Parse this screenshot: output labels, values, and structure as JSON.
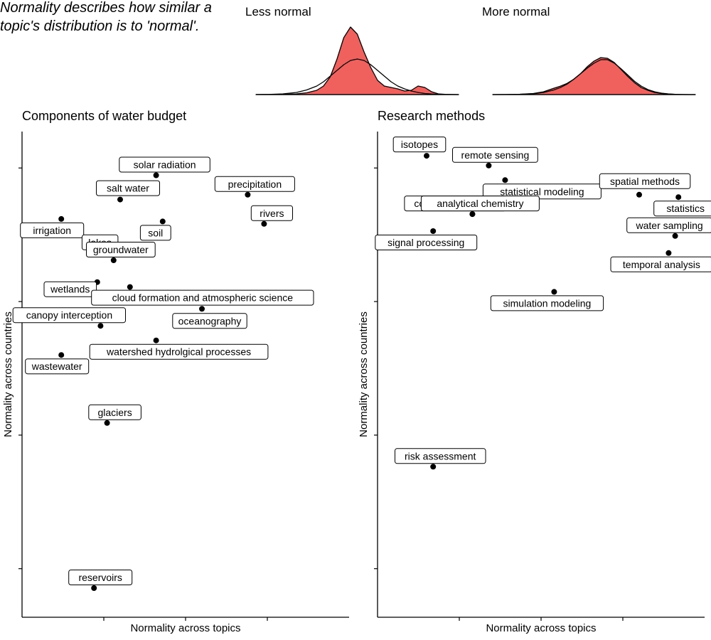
{
  "explanatory_note": "Normality describes how similar a topic's distribution is to 'normal'.",
  "chart_data": [
    {
      "type": "area",
      "title": "Less normal",
      "series": [
        {
          "x": [
            -3.0,
            -2.6,
            -2.2,
            -1.8,
            -1.5,
            -1.2,
            -1.0,
            -0.8,
            -0.6,
            -0.4,
            -0.2,
            0.0,
            0.2,
            0.4,
            0.6,
            0.8,
            1.0,
            1.2,
            1.4,
            1.6,
            1.8,
            2.0,
            2.2,
            2.4,
            2.6,
            2.8,
            3.0
          ],
          "y": [
            0.0,
            0.001,
            0.003,
            0.01,
            0.025,
            0.06,
            0.12,
            0.25,
            0.5,
            0.8,
            0.95,
            0.85,
            0.6,
            0.38,
            0.2,
            0.12,
            0.1,
            0.08,
            0.05,
            0.06,
            0.12,
            0.1,
            0.04,
            0.01,
            0.003,
            0.001,
            0.0
          ]
        },
        {
          "x": [
            -3.0,
            -2.6,
            -2.2,
            -1.8,
            -1.5,
            -1.2,
            -1.0,
            -0.8,
            -0.6,
            -0.4,
            -0.2,
            0.0,
            0.2,
            0.4,
            0.6,
            0.8,
            1.0,
            1.2,
            1.4,
            1.6,
            1.8,
            2.0,
            2.2,
            2.4,
            2.6,
            2.8,
            3.0
          ],
          "y": [
            0.001,
            0.003,
            0.01,
            0.03,
            0.065,
            0.12,
            0.18,
            0.26,
            0.34,
            0.42,
            0.48,
            0.5,
            0.48,
            0.42,
            0.34,
            0.26,
            0.18,
            0.12,
            0.08,
            0.05,
            0.03,
            0.015,
            0.008,
            0.004,
            0.002,
            0.001,
            0.0
          ]
        }
      ]
    },
    {
      "type": "area",
      "title": "More normal",
      "series": [
        {
          "x": [
            -3.0,
            -2.6,
            -2.2,
            -1.8,
            -1.5,
            -1.2,
            -1.0,
            -0.8,
            -0.6,
            -0.4,
            -0.2,
            0.0,
            0.2,
            0.4,
            0.6,
            0.8,
            1.0,
            1.2,
            1.4,
            1.6,
            1.8,
            2.0,
            2.2,
            2.4,
            2.6,
            2.8,
            3.0
          ],
          "y": [
            0.0,
            0.001,
            0.005,
            0.015,
            0.04,
            0.09,
            0.12,
            0.16,
            0.22,
            0.3,
            0.4,
            0.48,
            0.53,
            0.52,
            0.46,
            0.36,
            0.26,
            0.17,
            0.1,
            0.06,
            0.03,
            0.015,
            0.007,
            0.003,
            0.001,
            0.0,
            0.0
          ]
        },
        {
          "x": [
            -3.0,
            -2.6,
            -2.2,
            -1.8,
            -1.5,
            -1.2,
            -1.0,
            -0.8,
            -0.6,
            -0.4,
            -0.2,
            0.0,
            0.2,
            0.4,
            0.6,
            0.8,
            1.0,
            1.2,
            1.4,
            1.6,
            1.8,
            2.0,
            2.2,
            2.4,
            2.6,
            2.8,
            3.0
          ],
          "y": [
            0.0,
            0.001,
            0.004,
            0.012,
            0.03,
            0.065,
            0.1,
            0.15,
            0.22,
            0.3,
            0.38,
            0.45,
            0.5,
            0.5,
            0.45,
            0.37,
            0.28,
            0.19,
            0.12,
            0.07,
            0.04,
            0.02,
            0.01,
            0.004,
            0.001,
            0.0,
            0.0
          ]
        }
      ]
    },
    {
      "type": "scatter",
      "title": "Components of water budget",
      "xlabel": "Normality across topics",
      "ylabel": "Normality across countries",
      "xlim": [
        0.0,
        1.0
      ],
      "ylim": [
        0.0,
        1.0
      ],
      "grid": false,
      "points": [
        {
          "label": "solar radiation",
          "x": 0.41,
          "y": 0.91
        },
        {
          "label": "precipitation",
          "x": 0.69,
          "y": 0.87
        },
        {
          "label": "salt water",
          "x": 0.3,
          "y": 0.86
        },
        {
          "label": "irrigation",
          "x": 0.12,
          "y": 0.82
        },
        {
          "label": "soil",
          "x": 0.43,
          "y": 0.815
        },
        {
          "label": "rivers",
          "x": 0.74,
          "y": 0.81
        },
        {
          "label": "lakes",
          "x": 0.26,
          "y": 0.75
        },
        {
          "label": "groundwater",
          "x": 0.28,
          "y": 0.735
        },
        {
          "label": "wetlands",
          "x": 0.23,
          "y": 0.69
        },
        {
          "label": "cloud formation and atmospheric science",
          "x": 0.33,
          "y": 0.68
        },
        {
          "label": "oceanography",
          "x": 0.55,
          "y": 0.635
        },
        {
          "label": "canopy interception",
          "x": 0.24,
          "y": 0.6
        },
        {
          "label": "watershed hydrolgical processes",
          "x": 0.41,
          "y": 0.57
        },
        {
          "label": "wastewater",
          "x": 0.12,
          "y": 0.54
        },
        {
          "label": "glaciers",
          "x": 0.26,
          "y": 0.4
        },
        {
          "label": "reservoirs",
          "x": 0.22,
          "y": 0.06
        }
      ]
    },
    {
      "type": "scatter",
      "title": "Research methods",
      "xlabel": "Normality across topics",
      "ylabel": "Normality across countries",
      "xlim": [
        0.0,
        1.0
      ],
      "ylim": [
        0.0,
        1.0
      ],
      "grid": false,
      "points": [
        {
          "label": "isotopes",
          "x": 0.15,
          "y": 0.95
        },
        {
          "label": "remote sensing",
          "x": 0.34,
          "y": 0.93
        },
        {
          "label": "statistical modeling",
          "x": 0.39,
          "y": 0.9
        },
        {
          "label": "spatial methods",
          "x": 0.8,
          "y": 0.87
        },
        {
          "label": "statistics",
          "x": 0.92,
          "y": 0.865
        },
        {
          "label": "community studies",
          "x": 0.29,
          "y": 0.83
        },
        {
          "label": "analytical chemistry",
          "x": 0.29,
          "y": 0.83
        },
        {
          "label": "signal processing",
          "x": 0.17,
          "y": 0.795
        },
        {
          "label": "water sampling",
          "x": 0.91,
          "y": 0.785
        },
        {
          "label": "temporal analysis",
          "x": 0.89,
          "y": 0.75
        },
        {
          "label": "simulation modeling",
          "x": 0.54,
          "y": 0.67
        },
        {
          "label": "risk assessment",
          "x": 0.17,
          "y": 0.31
        }
      ]
    }
  ]
}
